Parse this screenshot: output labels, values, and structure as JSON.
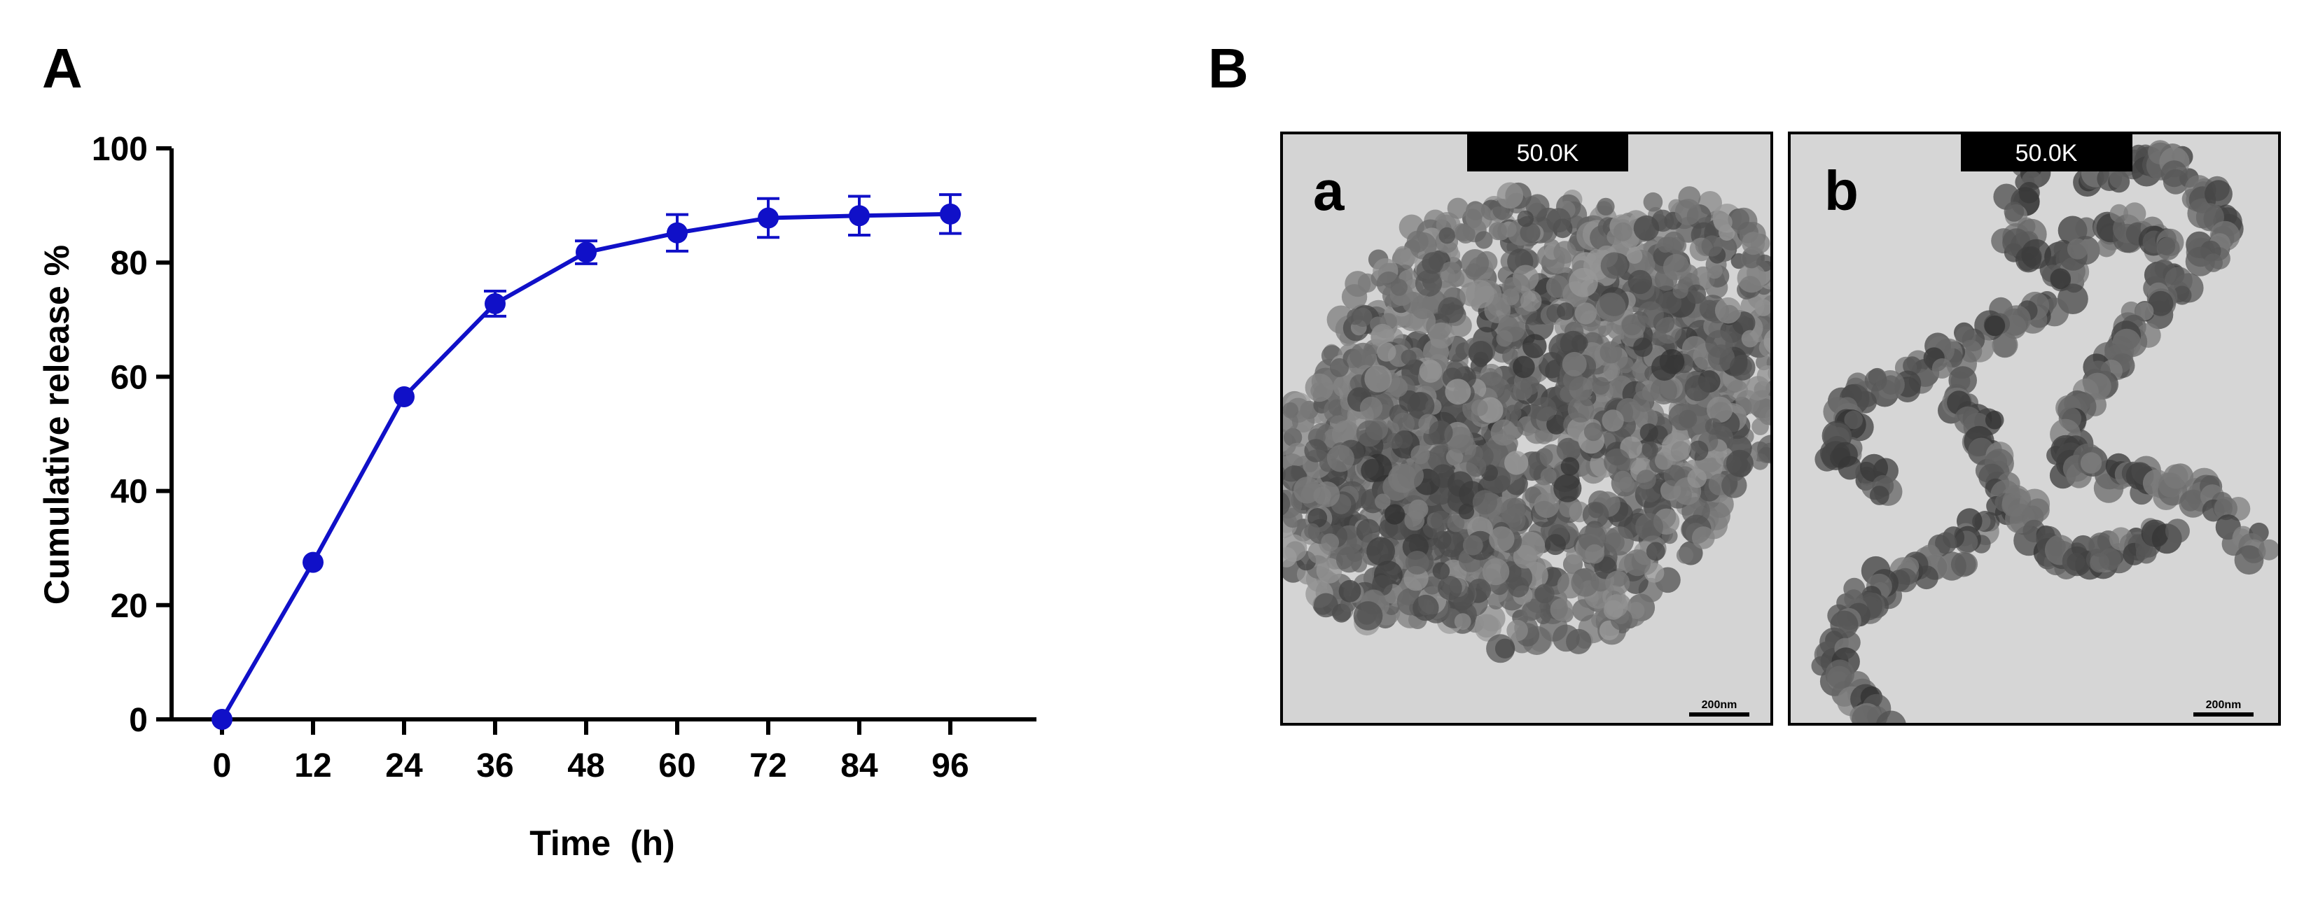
{
  "panels": {
    "A": {
      "letter": "A"
    },
    "B": {
      "letter": "B",
      "images": [
        {
          "sublabel": "a",
          "magnification": "50.0K",
          "scale_bar": "200nm",
          "texture": "dense-aggregate"
        },
        {
          "sublabel": "b",
          "magnification": "50.0K",
          "scale_bar": "200nm",
          "texture": "chain-network"
        }
      ]
    }
  },
  "colors": {
    "series": "#1010c8",
    "axis": "#000000",
    "tem_background": "#d2d2d2",
    "particle": "#3c3c3c"
  },
  "chart_data": {
    "type": "line",
    "title": "",
    "xlabel": "Time  (h)",
    "ylabel": "Cumulative release %",
    "x": [
      0,
      12,
      24,
      36,
      48,
      60,
      72,
      84,
      96
    ],
    "xticks": [
      "0",
      "12",
      "24",
      "36",
      "48",
      "60",
      "72",
      "84",
      "96"
    ],
    "yticks": [
      "0",
      "20",
      "40",
      "60",
      "80",
      "100"
    ],
    "ylim": [
      0,
      100
    ],
    "grid": false,
    "legend": "none",
    "series": [
      {
        "values": [
          0,
          27.5,
          56.5,
          72.8,
          81.8,
          85.2,
          87.8,
          88.2,
          88.5
        ],
        "error": [
          0,
          0,
          0,
          2.2,
          2.0,
          3.2,
          3.4,
          3.4,
          3.4
        ]
      }
    ]
  }
}
